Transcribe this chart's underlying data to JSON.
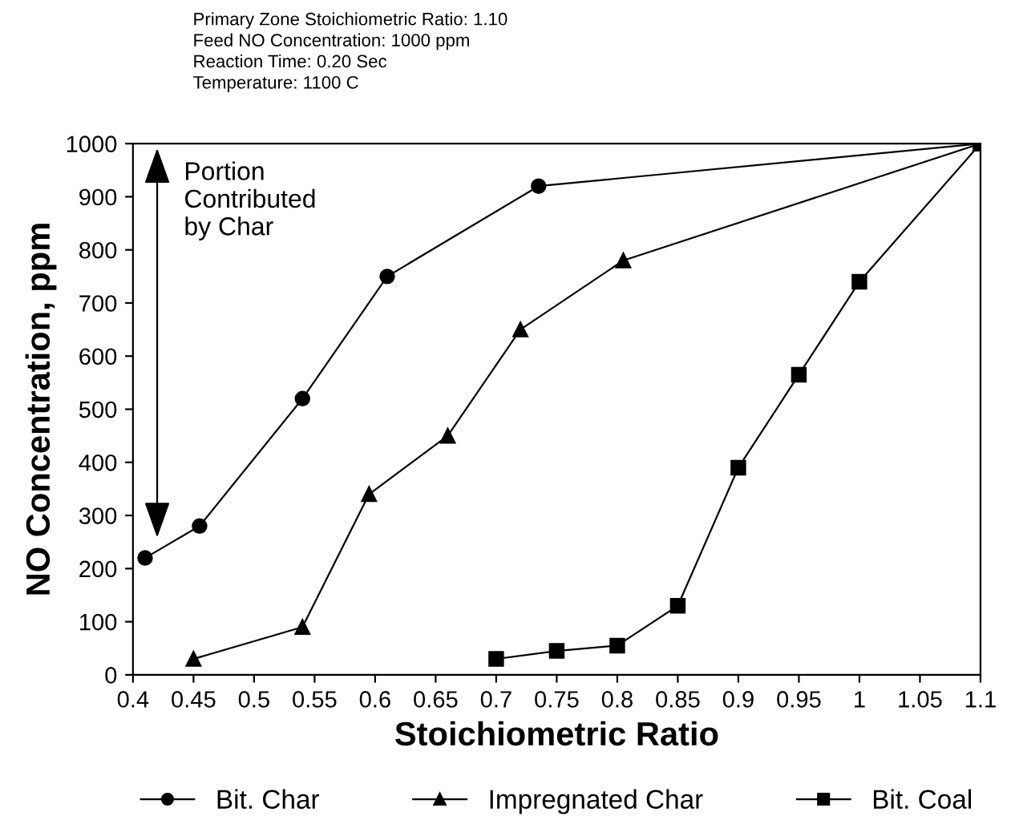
{
  "chart_data": {
    "type": "line",
    "xlabel": "Stoichiometric Ratio",
    "ylabel": "NO Concentration, ppm",
    "xlim": [
      0.4,
      1.1
    ],
    "xticks": [
      0.4,
      0.45,
      0.5,
      0.55,
      0.6,
      0.65,
      0.7,
      0.75,
      0.8,
      0.85,
      0.9,
      0.95,
      1,
      1.05,
      1.1
    ],
    "ylim": [
      0,
      1000
    ],
    "yticks": [
      0,
      100,
      200,
      300,
      400,
      500,
      600,
      700,
      800,
      900,
      1000
    ],
    "legend": "bottom",
    "grid": false,
    "annotations": [
      "Primary Zone Stoichiometric Ratio: 1.10\nFeed NO Concentration: 1000 ppm\nReaction Time: 0.20 Sec\nTemperature: 1100 C",
      {
        "text": "Portion\nContributed\nby Char",
        "x": 0.42,
        "y": 250
      }
    ],
    "series": [
      {
        "name": "Bit. Char",
        "color": "#000000",
        "marker": "circle",
        "x": [
          0.41,
          0.455,
          0.54,
          0.61,
          0.735,
          1.1
        ],
        "values": [
          220,
          280,
          520,
          750,
          920,
          1000
        ]
      },
      {
        "name": "Impregnated Char",
        "color": "#000000",
        "marker": "triangle",
        "x": [
          0.45,
          0.54,
          0.595,
          0.66,
          0.72,
          0.805,
          1.1
        ],
        "values": [
          30,
          90,
          340,
          450,
          650,
          780,
          1000
        ]
      },
      {
        "name": "Bit. Coal",
        "color": "#000000",
        "marker": "square",
        "x": [
          0.7,
          0.75,
          0.8,
          0.85,
          0.9,
          0.95,
          1.0,
          1.1
        ],
        "values": [
          30,
          45,
          55,
          130,
          390,
          565,
          740,
          1000
        ]
      }
    ]
  }
}
